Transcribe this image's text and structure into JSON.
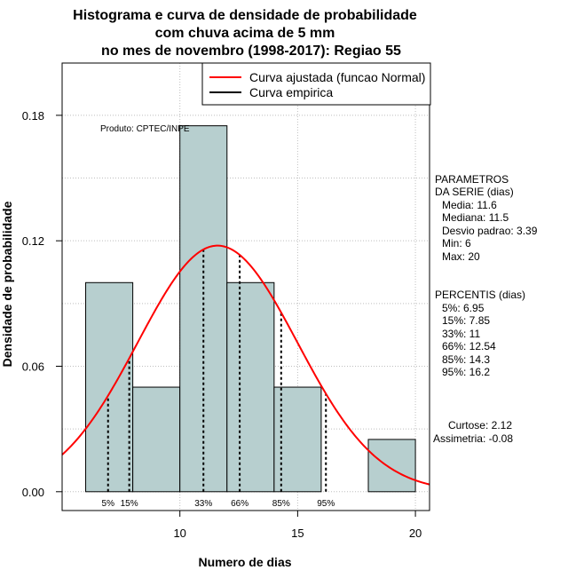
{
  "chart_data": {
    "type": "histogram",
    "title_lines": [
      "Histograma e curva de densidade de probabilidade",
      "com chuva acima de 5 mm",
      "no mes de novembro (1998-2017): Regiao 55"
    ],
    "xlabel": "Numero de dias",
    "ylabel": "Densidade de probabilidade",
    "xlim": [
      5,
      20.6
    ],
    "ylim": [
      -0.009,
      0.205
    ],
    "x_ticks": [
      10,
      15,
      20
    ],
    "x_tick_labels": [
      "10",
      "15",
      "20"
    ],
    "y_ticks": [
      0.0,
      0.06,
      0.12,
      0.18
    ],
    "y_tick_labels": [
      "0.00",
      "0.06",
      "0.12",
      "0.18"
    ],
    "grid": true,
    "bars": [
      {
        "x0": 6,
        "x1": 8,
        "density": 0.1
      },
      {
        "x0": 8,
        "x1": 10,
        "density": 0.05
      },
      {
        "x0": 10,
        "x1": 12,
        "density": 0.175
      },
      {
        "x0": 12,
        "x1": 14,
        "density": 0.1
      },
      {
        "x0": 14,
        "x1": 16,
        "density": 0.05
      },
      {
        "x0": 16,
        "x1": 18,
        "density": 0.0
      },
      {
        "x0": 18,
        "x1": 20,
        "density": 0.025
      }
    ],
    "normal_fit": {
      "mean": 11.6,
      "sd": 3.39
    },
    "percentile_lines": [
      {
        "label": "5%",
        "x": 6.95
      },
      {
        "label": "15%",
        "x": 7.85
      },
      {
        "label": "33%",
        "x": 11
      },
      {
        "label": "66%",
        "x": 12.54
      },
      {
        "label": "85%",
        "x": 14.3
      },
      {
        "label": "95%",
        "x": 16.2
      }
    ],
    "legend": {
      "position": "top-right",
      "entries": [
        {
          "label": "Curva ajustada (funcao Normal)",
          "color": "#ff0000"
        },
        {
          "label": "Curva empirica",
          "color": "#000000"
        }
      ]
    },
    "annotation": "Produto: CPTEC/INPE",
    "colors": {
      "bar_fill": "#b7cfcf",
      "curve": "#ff0000",
      "grid": "#bebebe"
    },
    "parametros": {
      "title_lines": [
        "PARAMETROS",
        "DA SERIE (dias)"
      ],
      "lines": [
        "Media: 11.6",
        "Mediana: 11.5",
        "Desvio padrao: 3.39",
        "Min: 6",
        "Max: 20"
      ]
    },
    "percentis": {
      "title": "PERCENTIS (dias)",
      "lines": [
        "5%: 6.95",
        "15%: 7.85",
        "33%: 11",
        "66%: 12.54",
        "85%: 14.3",
        "95%: 16.2"
      ]
    },
    "stats": [
      "Curtose: 2.12",
      "Assimetria: -0.08"
    ]
  }
}
